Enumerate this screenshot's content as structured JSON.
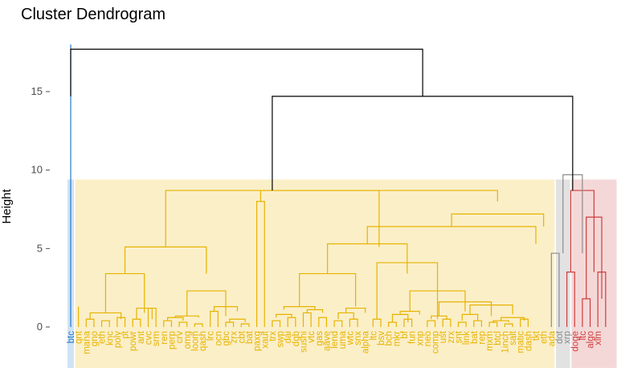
{
  "chart_data": {
    "type": "dendrogram",
    "title": "Cluster Dendrogram",
    "ylabel": "Height",
    "xlabel": "",
    "ylim": [
      -2.5,
      18.8
    ],
    "yticks": [
      0,
      5,
      10,
      15
    ],
    "grid": false,
    "colors": {
      "blue": "#1f78c8",
      "yellow": "#e6b300",
      "gray": "#8c8c8c",
      "red": "#d03c3c",
      "root": "#000000"
    },
    "groups": [
      {
        "color": "blue",
        "band": "#cfe3f4",
        "count": 1
      },
      {
        "color": "yellow",
        "band": "#fbefc8",
        "count": 62
      },
      {
        "color": "gray",
        "band": "#e2e2e2",
        "count": 2
      },
      {
        "color": "red",
        "band": "#f4d8d8",
        "count": 6
      }
    ],
    "labels": [
      "btc",
      "qnt",
      "mana",
      "gno",
      "eth",
      "knc",
      "poly",
      "pt",
      "powr",
      "ant",
      "cvc",
      "srm",
      "ren",
      "perp",
      "crv",
      "omg",
      "loom",
      "qash",
      "lrc",
      "ocn",
      "gbc",
      "zrx",
      "cbt",
      "bat",
      "paxg",
      "xaut",
      "trx",
      "swp",
      "dai",
      "dgb",
      "sushi",
      "vtc",
      "gas",
      "aave",
      "lend",
      "uma",
      "wtc",
      "snx",
      "alpha",
      "ltc",
      "bsv",
      "bch",
      "mkr",
      "bf",
      "fun",
      "xnp",
      "neo",
      "comp",
      "ust",
      "zrx",
      "snt",
      "link",
      "bat",
      "rep",
      "mxm",
      "btcl",
      "1inch",
      "salt",
      "matic",
      "dash",
      "tkt",
      "eth",
      "ada",
      "dot",
      "xrp",
      "doge",
      "ltc",
      "algo",
      "xlm"
    ],
    "merges": [
      [
        "B",
        0,
        0,
        0.0,
        18.0,
        "blue"
      ],
      [
        "Y",
        1,
        1,
        0.0,
        1.3,
        "yellow"
      ],
      [
        "Y",
        2,
        3,
        0.0,
        0.5,
        "yellow"
      ],
      [
        "Y",
        4,
        5,
        0.0,
        0.4,
        "yellow"
      ],
      [
        "Y",
        6,
        7,
        0.0,
        0.6,
        "yellow"
      ],
      [
        "Y",
        2.5,
        6.5,
        0.5,
        0.9,
        "yellow"
      ],
      [
        "Y",
        8,
        9,
        0.0,
        0.5,
        "yellow"
      ],
      [
        "Y",
        10,
        11,
        0.0,
        1.2,
        "yellow"
      ],
      [
        "Y",
        8.5,
        10.5,
        0.5,
        1.2,
        "yellow"
      ],
      [
        "Y",
        4.5,
        9.5,
        0.9,
        3.4,
        "yellow"
      ],
      [
        "Y",
        12,
        13,
        0.0,
        0.4,
        "yellow"
      ],
      [
        "Y",
        14,
        15,
        0.0,
        0.3,
        "yellow"
      ],
      [
        "Y",
        16,
        17,
        0.0,
        0.2,
        "yellow"
      ],
      [
        "Y",
        12.5,
        14.5,
        0.4,
        0.6,
        "yellow"
      ],
      [
        "Y",
        13.5,
        16.5,
        0.6,
        0.7,
        "yellow"
      ],
      [
        "Y",
        18,
        19,
        0.0,
        1.0,
        "yellow"
      ],
      [
        "Y",
        20,
        21,
        0.0,
        0.3,
        "yellow"
      ],
      [
        "Y",
        22,
        23,
        0.0,
        0.2,
        "yellow"
      ],
      [
        "Y",
        20.5,
        22.5,
        0.3,
        0.5,
        "yellow"
      ],
      [
        "Y",
        18.5,
        21.5,
        1.0,
        1.3,
        "yellow"
      ],
      [
        "Y",
        15,
        20,
        0.7,
        2.3,
        "yellow"
      ],
      [
        "Y",
        7,
        17.5,
        3.4,
        5.1,
        "yellow"
      ],
      [
        "Y",
        24,
        25,
        0.0,
        8.0,
        "yellow"
      ],
      [
        "Y",
        26,
        27,
        0.0,
        0.4,
        "yellow"
      ],
      [
        "Y",
        28,
        29,
        0.0,
        0.6,
        "yellow"
      ],
      [
        "Y",
        26.5,
        28.5,
        0.6,
        0.8,
        "yellow"
      ],
      [
        "Y",
        30,
        31,
        0.0,
        0.9,
        "yellow"
      ],
      [
        "Y",
        32,
        33,
        0.0,
        0.6,
        "yellow"
      ],
      [
        "Y",
        30.5,
        32.5,
        0.9,
        1.1,
        "yellow"
      ],
      [
        "Y",
        27.5,
        31.5,
        1.1,
        1.3,
        "yellow"
      ],
      [
        "Y",
        34,
        35,
        0.0,
        0.4,
        "yellow"
      ],
      [
        "Y",
        36,
        37,
        0.0,
        0.5,
        "yellow"
      ],
      [
        "Y",
        34.5,
        36.5,
        0.5,
        0.9,
        "yellow"
      ],
      [
        "Y",
        35.5,
        38,
        0.9,
        1.2,
        "yellow"
      ],
      [
        "Y",
        29.5,
        36.75,
        1.3,
        3.4,
        "yellow"
      ],
      [
        "Y",
        39,
        40,
        0.0,
        0.5,
        "yellow"
      ],
      [
        "Y",
        41,
        42,
        0.0,
        0.3,
        "yellow"
      ],
      [
        "Y",
        43,
        44,
        0.0,
        0.5,
        "yellow"
      ],
      [
        "Y",
        41.5,
        43.5,
        0.3,
        0.8,
        "yellow"
      ],
      [
        "Y",
        42.5,
        45,
        0.8,
        1.0,
        "yellow"
      ],
      [
        "Y",
        46,
        47,
        0.0,
        0.4,
        "yellow"
      ],
      [
        "Y",
        48,
        49,
        0.0,
        0.5,
        "yellow"
      ],
      [
        "Y",
        46.5,
        48.5,
        0.5,
        0.7,
        "yellow"
      ],
      [
        "Y",
        50,
        51,
        0.0,
        0.3,
        "yellow"
      ],
      [
        "Y",
        52,
        53,
        0.0,
        0.4,
        "yellow"
      ],
      [
        "Y",
        50.5,
        52.5,
        0.4,
        0.8,
        "yellow"
      ],
      [
        "Y",
        54,
        55,
        0.0,
        0.3,
        "yellow"
      ],
      [
        "Y",
        56,
        57,
        0.0,
        0.2,
        "yellow"
      ],
      [
        "Y",
        54.5,
        56.5,
        0.3,
        0.4,
        "yellow"
      ],
      [
        "Y",
        58,
        59,
        0.0,
        0.5,
        "yellow"
      ],
      [
        "Y",
        55.5,
        58.5,
        0.4,
        0.6,
        "yellow"
      ],
      [
        "Y",
        51.5,
        57,
        0.8,
        1.4,
        "yellow"
      ],
      [
        "Y",
        47.5,
        54.25,
        0.7,
        1.6,
        "yellow"
      ],
      [
        "Y",
        43.75,
        50.875,
        1.0,
        2.3,
        "yellow"
      ],
      [
        "Y",
        39.5,
        47.31,
        0.5,
        4.1,
        "yellow"
      ],
      [
        "Y",
        33.125,
        43.4,
        3.4,
        5.3,
        "yellow"
      ],
      [
        "Y",
        38.26,
        60,
        5.3,
        6.4,
        "yellow"
      ],
      [
        "Y",
        49.13,
        61,
        6.4,
        7.2,
        "yellow"
      ],
      [
        "Y",
        24.5,
        55.06,
        8.0,
        8.7,
        "yellow"
      ],
      [
        "Y",
        12.25,
        39.78,
        5.1,
        8.7,
        "yellow"
      ],
      [
        "G",
        62,
        63,
        0.0,
        4.7,
        "gray"
      ],
      [
        "R",
        64,
        65,
        0.0,
        3.5,
        "red"
      ],
      [
        "R",
        66,
        67,
        0.0,
        1.8,
        "red"
      ],
      [
        "R",
        68,
        69,
        0.0,
        3.5,
        "red"
      ],
      [
        "R",
        66.5,
        68.5,
        1.8,
        7.0,
        "red"
      ],
      [
        "R",
        64.5,
        67.5,
        3.5,
        8.7,
        "red"
      ],
      [
        "R",
        63.5,
        66.0,
        4.7,
        9.7,
        "gray"
      ],
      [
        "K",
        26.0,
        64.75,
        8.7,
        14.7,
        "root"
      ],
      [
        "K",
        0,
        45.4,
        14.7,
        17.7,
        "root"
      ]
    ]
  }
}
